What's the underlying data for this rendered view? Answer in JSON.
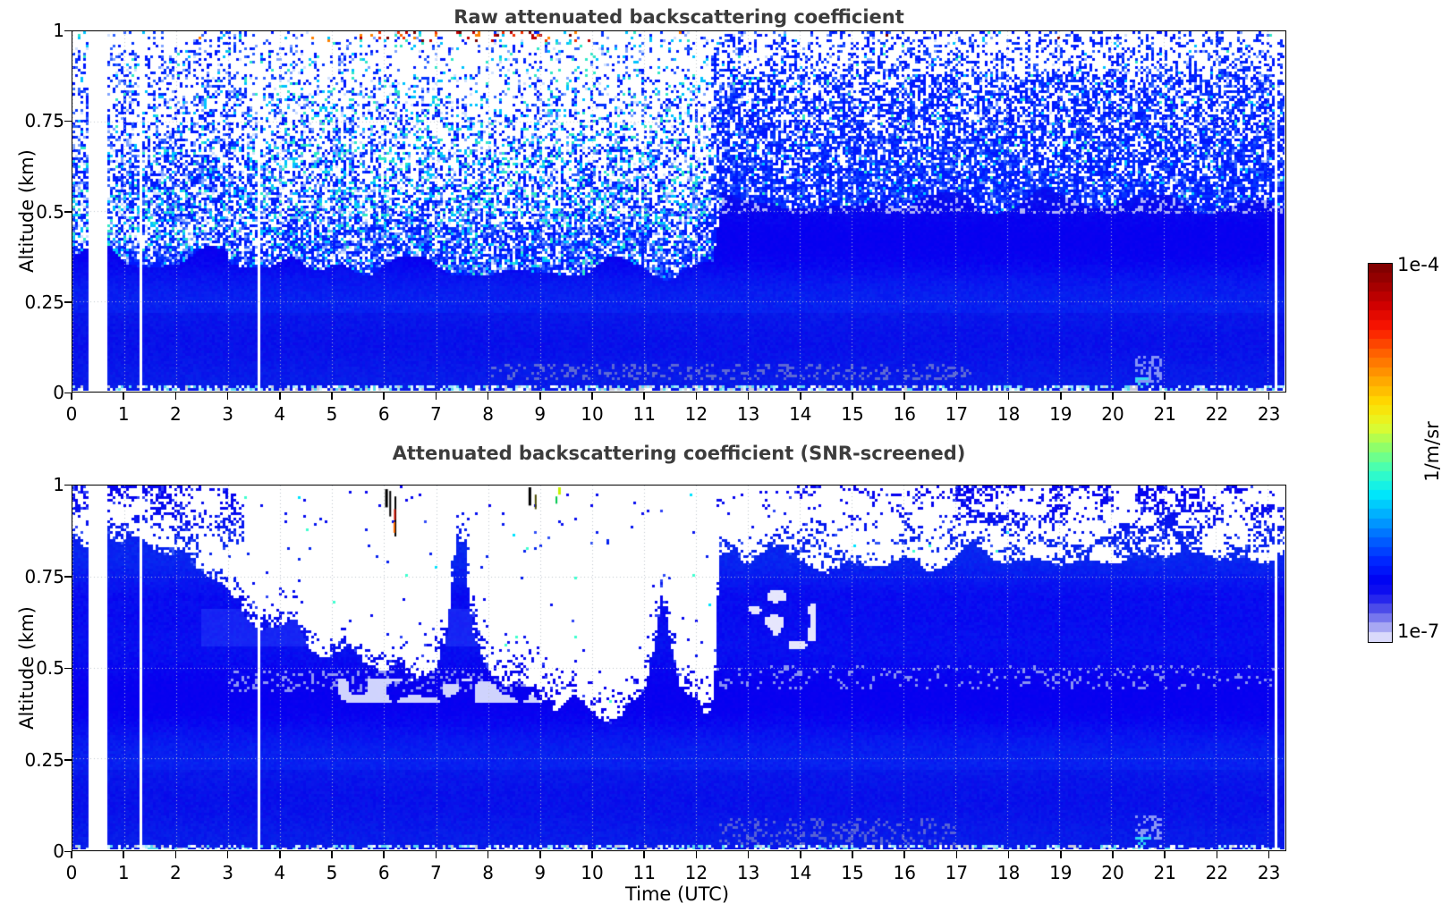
{
  "figure": {
    "background": "#ffffff",
    "title_color": "#3c3c3c"
  },
  "axes": {
    "ylabel": "Altitude (km)",
    "xlabel": "Time (UTC)",
    "y_ticks": [
      "1",
      "0.75",
      "0.5",
      "0.25",
      "0"
    ],
    "y_tick_values": [
      1,
      0.75,
      0.5,
      0.25,
      0
    ],
    "x_ticks": [
      "0",
      "1",
      "2",
      "3",
      "4",
      "5",
      "6",
      "7",
      "8",
      "9",
      "10",
      "11",
      "12",
      "13",
      "14",
      "15",
      "16",
      "17",
      "18",
      "19",
      "20",
      "21",
      "22",
      "23"
    ],
    "x_tick_values": [
      0,
      1,
      2,
      3,
      4,
      5,
      6,
      7,
      8,
      9,
      10,
      11,
      12,
      13,
      14,
      15,
      16,
      17,
      18,
      19,
      20,
      21,
      22,
      23
    ],
    "xlim": [
      0,
      23.333
    ],
    "ylim": [
      0,
      1
    ],
    "grid": "dotted"
  },
  "colorbar": {
    "max_label": "1e-4",
    "min_label": "1e-7",
    "unit_label": "1/m/sr",
    "scale": "log",
    "stops": [
      [
        0.0,
        "#7a0000"
      ],
      [
        0.05,
        "#9c0000"
      ],
      [
        0.11,
        "#cf0000"
      ],
      [
        0.17,
        "#fb1500"
      ],
      [
        0.23,
        "#ff5a00"
      ],
      [
        0.3,
        "#ff9e00"
      ],
      [
        0.37,
        "#ffdd00"
      ],
      [
        0.43,
        "#e4fb2b"
      ],
      [
        0.49,
        "#8cff6d"
      ],
      [
        0.55,
        "#3bffc0"
      ],
      [
        0.61,
        "#00e9fb"
      ],
      [
        0.67,
        "#00aaff"
      ],
      [
        0.73,
        "#0062ff"
      ],
      [
        0.79,
        "#0024ff"
      ],
      [
        0.845,
        "#0000f2"
      ],
      [
        0.88,
        "#1b1bef"
      ],
      [
        0.915,
        "#4f4fe9"
      ],
      [
        0.95,
        "#8c8cf0"
      ],
      [
        0.975,
        "#c3c3f7"
      ],
      [
        1.0,
        "#f2f2ff"
      ]
    ]
  },
  "chart_data": [
    {
      "type": "heatmap",
      "title": "Raw attenuated backscattering coefficient",
      "xlabel": "Time (UTC)",
      "ylabel": "Altitude (km)",
      "xlim": [
        0,
        23.333
      ],
      "ylim": [
        0,
        1
      ],
      "value_range_1_per_m_sr": [
        "1e-7",
        "1e-4"
      ],
      "data_gaps_utc": [
        0.33,
        0.42,
        0.52,
        0.63,
        1.33,
        3.6,
        23.18
      ],
      "solid_signal_top_km_before_transition": 0.34,
      "solid_signal_top_km_after_transition": 0.52,
      "transition_utc": 12.3,
      "bright_speckle_hours": [
        3.5,
        12.3
      ],
      "red_speck_zone": {
        "hours": [
          5.2,
          9.8
        ],
        "altitude_km": [
          0.97,
          1.0
        ]
      },
      "surface_speckle_band_km": 0.015
    },
    {
      "type": "heatmap",
      "title": "Attenuated backscattering coefficient (SNR-screened)",
      "xlabel": "Time (UTC)",
      "ylabel": "Altitude (km)",
      "xlim": [
        0,
        23.333
      ],
      "ylim": [
        0,
        1
      ],
      "value_range_1_per_m_sr": [
        "1e-7",
        "1e-4"
      ],
      "data_gaps_utc": [
        0.33,
        0.42,
        0.52,
        0.63,
        1.33,
        3.6,
        23.18
      ],
      "layer_top_km": {
        "t": [
          0,
          0.3,
          0.7,
          1,
          1.3,
          1.7,
          2,
          2.3,
          2.6,
          3,
          3.3,
          3.6,
          4,
          4.3,
          4.6,
          5,
          5.3,
          5.6,
          6,
          6.3,
          6.6,
          7,
          7.2,
          7.4,
          7.55,
          7.7,
          8,
          8.3,
          8.6,
          9,
          9.3,
          9.6,
          10,
          10.4,
          10.8,
          11,
          11.2,
          11.35,
          11.5,
          11.7,
          12,
          12.2,
          12.35,
          12.45,
          12.7,
          13,
          13.3,
          13.6,
          14,
          14.5,
          15,
          15.5,
          16,
          16.5,
          17,
          17.5,
          18,
          18.5,
          19,
          19.5,
          20,
          20.5,
          21,
          21.5,
          22,
          22.5,
          23,
          23.33
        ],
        "z": [
          0.88,
          0.85,
          0.87,
          0.84,
          0.86,
          0.83,
          0.82,
          0.78,
          0.74,
          0.7,
          0.64,
          0.6,
          0.6,
          0.64,
          0.56,
          0.52,
          0.55,
          0.5,
          0.48,
          0.52,
          0.45,
          0.48,
          0.58,
          0.88,
          0.85,
          0.62,
          0.5,
          0.45,
          0.47,
          0.42,
          0.4,
          0.42,
          0.38,
          0.37,
          0.4,
          0.42,
          0.55,
          0.72,
          0.6,
          0.46,
          0.42,
          0.37,
          0.4,
          0.78,
          0.8,
          0.76,
          0.8,
          0.85,
          0.82,
          0.78,
          0.8,
          0.76,
          0.8,
          0.78,
          0.8,
          0.82,
          0.79,
          0.81,
          0.78,
          0.8,
          0.79,
          0.81,
          0.78,
          0.8,
          0.79,
          0.81,
          0.8,
          0.82
        ],
        "units": "km vs UTC hour"
      },
      "upper_speckle_density_by_hour": {
        "0-2.2": 0.34,
        "2.2-3.3": 0.22,
        "3.3-12.35": 0.01,
        "12.35-14": 0.1,
        "14-17": 0.17,
        "17-23.3": 0.36
      },
      "marks": [
        {
          "t": 6.02,
          "z": 0.99,
          "color": "#000000",
          "w": 3,
          "hkm": 0.05
        },
        {
          "t": 6.1,
          "z": 0.985,
          "color": "#000000",
          "w": 2,
          "hkm": 0.07
        },
        {
          "t": 6.2,
          "z": 0.97,
          "color": "#000000",
          "w": 2,
          "hkm": 0.11
        },
        {
          "t": 6.18,
          "z": 0.9,
          "color": "#ff6a00",
          "w": 2,
          "hkm": 0.03
        },
        {
          "t": 6.19,
          "z": 0.935,
          "color": "#cc1100",
          "w": 2,
          "hkm": 0.03
        },
        {
          "t": 8.78,
          "z": 0.995,
          "color": "#000000",
          "w": 3,
          "hkm": 0.05
        },
        {
          "t": 8.9,
          "z": 0.975,
          "color": "#4a4a00",
          "w": 2,
          "hkm": 0.04
        },
        {
          "t": 9.35,
          "z": 0.995,
          "color": "#c8f000",
          "w": 3,
          "hkm": 0.02
        },
        {
          "t": 9.3,
          "z": 0.97,
          "color": "#00c850",
          "w": 2,
          "hkm": 0.02
        }
      ],
      "surface_speckle_band_km": 0.015,
      "cyan_patch": {
        "t": [
          20.45,
          20.75
        ],
        "z": [
          0,
          0.05
        ]
      }
    }
  ],
  "render": {
    "blue_palette": [
      "#0018ff",
      "#0433ff",
      "#2f63ff",
      "#7fa3ff",
      "#00c3ff",
      "#2fe8c8",
      "#cfe0ff"
    ],
    "red_palette": [
      "#7a0000",
      "#c00000",
      "#f03000",
      "#ff8000"
    ],
    "surface_palette": [
      "#ffffff",
      "#d2f3ff",
      "#9fe8ff",
      "#59d8f0",
      "#c9c9da"
    ],
    "grid_color": "rgba(190,196,206,0.95)"
  }
}
